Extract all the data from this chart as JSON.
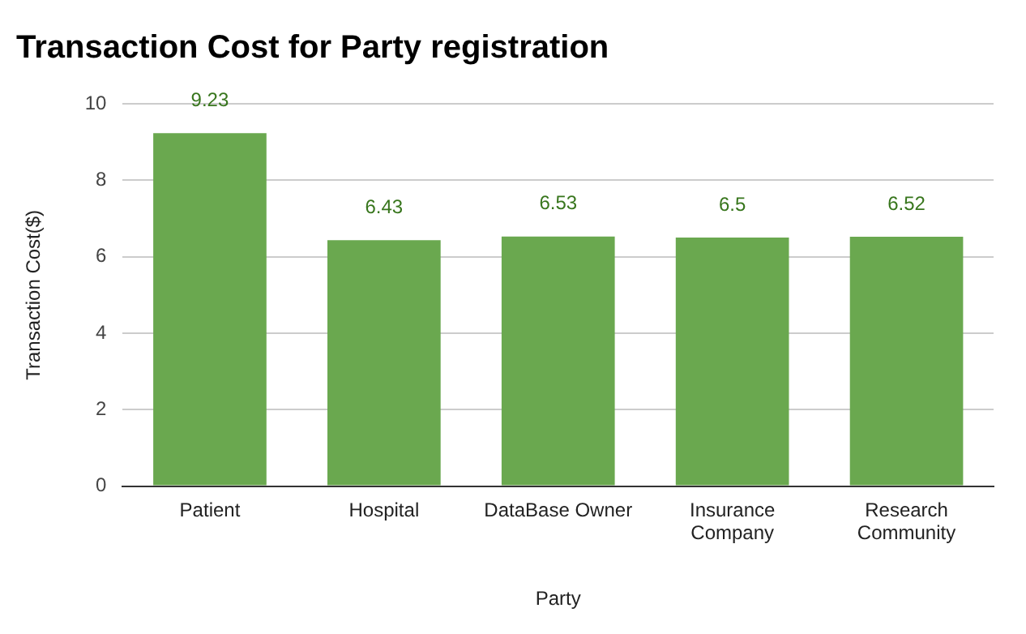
{
  "chart_data": {
    "type": "bar",
    "title": "Transaction Cost for Party registration",
    "xlabel": "Party",
    "ylabel": "Transaction Cost($)",
    "categories": [
      "Patient",
      "Hospital",
      "DataBase Owner",
      "Insurance Company",
      "Research Community"
    ],
    "values": [
      9.23,
      6.43,
      6.53,
      6.5,
      6.52
    ],
    "color": "#6aa84f",
    "ylim": [
      0,
      10
    ],
    "yticks": [
      0,
      2,
      4,
      6,
      8,
      10
    ],
    "grid": "y",
    "data_labels": true
  }
}
